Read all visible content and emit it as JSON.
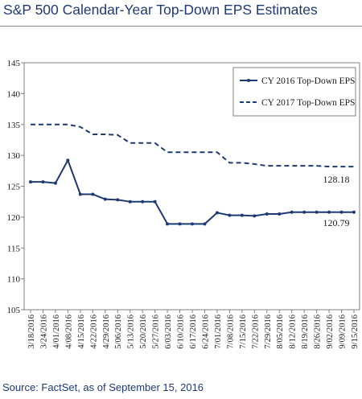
{
  "title": "S&P 500 Calendar-Year Top-Down EPS Estimates",
  "source": "Source: FactSet, as of September 15, 2016",
  "chart_data": {
    "type": "line",
    "ylim": [
      105,
      145
    ],
    "yticks": [
      105,
      110,
      115,
      120,
      125,
      130,
      135,
      140,
      145
    ],
    "grid": false,
    "legend_position": "top-right",
    "line_color": "#1f3a73",
    "categories": [
      "3/18/2016",
      "3/24/2016",
      "4/01/2016",
      "4/08/2016",
      "4/15/2016",
      "4/22/2016",
      "4/29/2016",
      "5/06/2016",
      "5/13/2016",
      "5/20/2016",
      "5/27/2016",
      "6/03/2016",
      "6/10/2016",
      "6/17/2016",
      "6/24/2016",
      "7/01/2016",
      "7/08/2016",
      "7/15/2016",
      "7/22/2016",
      "7/29/2016",
      "8/05/2016",
      "8/12/2016",
      "8/19/2016",
      "8/26/2016",
      "9/02/2016",
      "9/09/2016",
      "9/15/2016"
    ],
    "series": [
      {
        "name": "CY 2016 Top-Down EPS",
        "style": "solid-with-markers",
        "values": [
          125.7,
          125.7,
          125.5,
          129.2,
          123.7,
          123.7,
          122.9,
          122.8,
          122.5,
          122.5,
          122.5,
          118.9,
          118.9,
          118.9,
          118.9,
          120.7,
          120.3,
          120.3,
          120.2,
          120.5,
          120.5,
          120.8,
          120.8,
          120.8,
          120.79,
          120.79,
          120.79
        ],
        "end_label": "120.79"
      },
      {
        "name": "CY 2017 Top-Down EPS",
        "style": "dashed",
        "values": [
          135.0,
          135.0,
          135.0,
          135.0,
          134.6,
          133.4,
          133.4,
          133.3,
          132.0,
          132.0,
          132.0,
          130.5,
          130.5,
          130.5,
          130.5,
          130.5,
          128.8,
          128.8,
          128.6,
          128.3,
          128.3,
          128.3,
          128.3,
          128.3,
          128.18,
          128.18,
          128.18
        ],
        "end_label": "128.18"
      }
    ]
  }
}
